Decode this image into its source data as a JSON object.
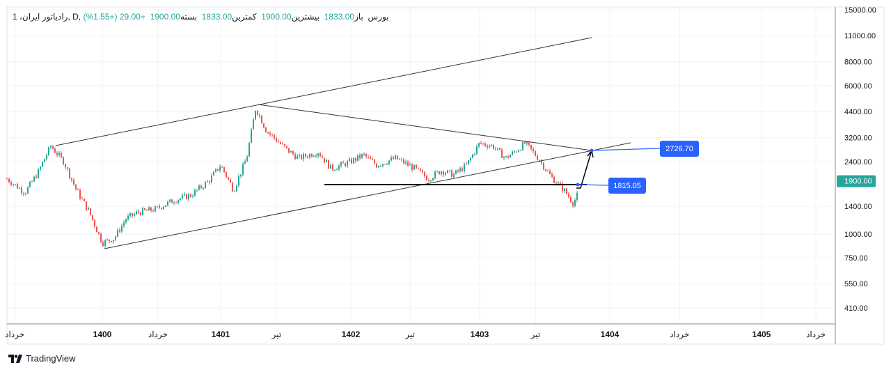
{
  "header": {
    "symbol": "1 ،رادیاتور ایران, D, بورس",
    "open_label": "باز",
    "open": "1833.00",
    "high_label": "بیشترین",
    "high": "1900.00",
    "low_label": "کمترین",
    "low": "1833.00",
    "close_label": "بسته",
    "close": "1900.00",
    "change": "+29.00 (+1.55%)"
  },
  "branding": "TradingView",
  "colors": {
    "up": "#26a69a",
    "down": "#ef5350",
    "label": "#2962ff",
    "price_tag": "#26a69a"
  },
  "chart_data": {
    "type": "candlestick",
    "yscale": "log",
    "ylim": [
      380,
      16000
    ],
    "y_ticks": [
      "15000.00",
      "11000.00",
      "8000.00",
      "6000.00",
      "4400.00",
      "3200.00",
      "2400.00",
      "1400.00",
      "1000.00",
      "750.00",
      "550.00",
      "410.00"
    ],
    "y_tick_values": [
      15000,
      11000,
      8000,
      6000,
      4400,
      3200,
      2400,
      1400,
      1000,
      750,
      550,
      410
    ],
    "last_price": "1900.00",
    "x_ticks": [
      {
        "t": 1399.32,
        "label": "خرداد"
      },
      {
        "t": 1400,
        "label": "1400"
      },
      {
        "t": 1400.47,
        "label": "خرداد"
      },
      {
        "t": 1401,
        "label": "1401"
      },
      {
        "t": 1401.43,
        "label": "تیر"
      },
      {
        "t": 1402,
        "label": "1402"
      },
      {
        "t": 1402.46,
        "label": "تیر"
      },
      {
        "t": 1403,
        "label": "1403"
      },
      {
        "t": 1403.43,
        "label": "تیر"
      },
      {
        "t": 1404,
        "label": "1404"
      },
      {
        "t": 1404.46,
        "label": "خرداد"
      },
      {
        "t": 1405,
        "label": "1405"
      },
      {
        "t": 1405.42,
        "label": "خرداد"
      }
    ],
    "price_path": [
      [
        1399.26,
        1950
      ],
      [
        1399.4,
        1650
      ],
      [
        1399.5,
        2100
      ],
      [
        1399.6,
        2900
      ],
      [
        1399.7,
        2400
      ],
      [
        1399.8,
        1700
      ],
      [
        1399.9,
        1300
      ],
      [
        1400.0,
        900
      ],
      [
        1400.1,
        950
      ],
      [
        1400.2,
        1200
      ],
      [
        1400.3,
        1300
      ],
      [
        1400.45,
        1350
      ],
      [
        1400.6,
        1500
      ],
      [
        1400.75,
        1600
      ],
      [
        1400.9,
        1900
      ],
      [
        1401.0,
        2300
      ],
      [
        1401.1,
        1700
      ],
      [
        1401.2,
        2500
      ],
      [
        1401.27,
        4600
      ],
      [
        1401.35,
        3500
      ],
      [
        1401.5,
        2800
      ],
      [
        1401.6,
        2500
      ],
      [
        1401.75,
        2700
      ],
      [
        1401.85,
        2200
      ],
      [
        1402.0,
        2400
      ],
      [
        1402.1,
        2600
      ],
      [
        1402.2,
        2300
      ],
      [
        1402.35,
        2500
      ],
      [
        1402.5,
        2200
      ],
      [
        1402.6,
        1950
      ],
      [
        1402.7,
        2150
      ],
      [
        1402.8,
        2050
      ],
      [
        1402.9,
        2300
      ],
      [
        1403.0,
        3000
      ],
      [
        1403.1,
        2900
      ],
      [
        1403.2,
        2500
      ],
      [
        1403.3,
        2800
      ],
      [
        1403.35,
        3000
      ],
      [
        1403.45,
        2500
      ],
      [
        1403.55,
        2000
      ],
      [
        1403.65,
        1700
      ],
      [
        1403.72,
        1450
      ],
      [
        1403.77,
        1700
      ],
      [
        1403.8,
        1900
      ]
    ],
    "annotations": [
      {
        "label": "2726.70",
        "price": 2726.7
      },
      {
        "label": "1815.05",
        "price": 1815.05
      }
    ]
  }
}
